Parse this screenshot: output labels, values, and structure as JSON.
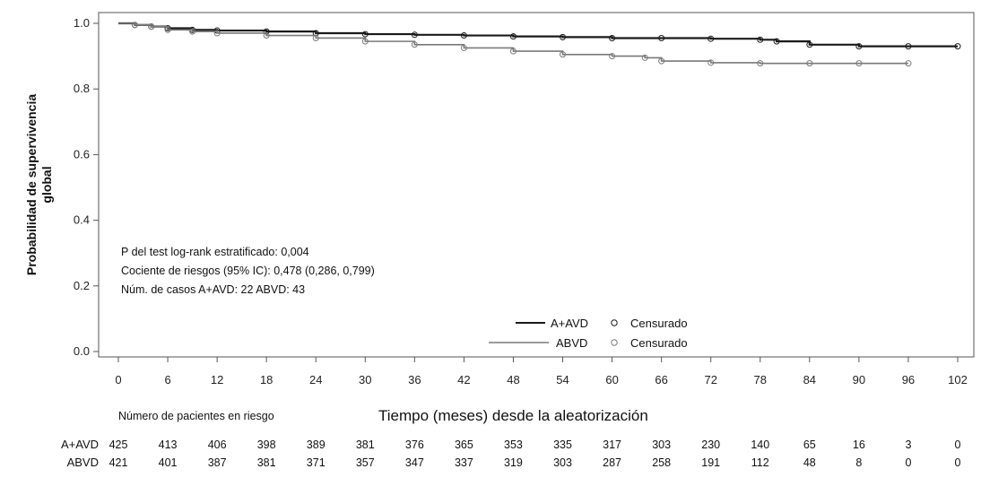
{
  "chart_data": {
    "type": "line",
    "title": "",
    "xlabel": "Tiempo (meses) desde la aleatorización",
    "ylabel_lines": [
      "Probabilidad de supervivencia",
      "global"
    ],
    "xlim": [
      0,
      102
    ],
    "ylim": [
      0.0,
      1.0
    ],
    "x_ticks": [
      0,
      6,
      12,
      18,
      24,
      30,
      36,
      42,
      48,
      54,
      60,
      66,
      72,
      78,
      84,
      90,
      96,
      102
    ],
    "y_ticks": [
      0.0,
      0.2,
      0.4,
      0.6,
      0.8,
      1.0
    ],
    "y_tick_labels": [
      "0.0",
      "0.2",
      "0.4",
      "0.6",
      "0.8",
      "1.0"
    ],
    "grid": false,
    "legend_position": "bottom-right",
    "series": [
      {
        "name": "A+AVD",
        "censor_label": "Censurado",
        "color": "#1a1a1a",
        "x": [
          0,
          2,
          4,
          6,
          9,
          12,
          18,
          24,
          30,
          36,
          42,
          48,
          54,
          60,
          66,
          72,
          78,
          80,
          84,
          90,
          96,
          102
        ],
        "y": [
          1.0,
          0.995,
          0.99,
          0.985,
          0.98,
          0.978,
          0.975,
          0.97,
          0.967,
          0.965,
          0.963,
          0.96,
          0.958,
          0.955,
          0.955,
          0.953,
          0.95,
          0.945,
          0.935,
          0.93,
          0.93,
          0.93
        ]
      },
      {
        "name": "ABVD",
        "censor_label": "Censurado",
        "color": "#7a7a7a",
        "x": [
          0,
          2,
          4,
          6,
          9,
          12,
          18,
          24,
          30,
          36,
          42,
          48,
          54,
          60,
          64,
          66,
          72,
          78,
          84,
          90,
          96
        ],
        "y": [
          1.0,
          0.995,
          0.99,
          0.98,
          0.975,
          0.97,
          0.963,
          0.955,
          0.945,
          0.935,
          0.925,
          0.915,
          0.905,
          0.9,
          0.895,
          0.885,
          0.88,
          0.878,
          0.878,
          0.878,
          0.878
        ]
      }
    ],
    "annotations": [
      "P del test log-rank estratificado: 0,004",
      "Cociente de riesgos (95% IC): 0,478 (0,286, 0,799)",
      "Núm. de casos A+AVD: 22 ABVD: 43"
    ],
    "risk_table": {
      "title": "Número de pacientes en riesgo",
      "rows": [
        {
          "label": "A+AVD",
          "values": [
            425,
            413,
            406,
            398,
            389,
            381,
            376,
            365,
            353,
            335,
            317,
            303,
            230,
            140,
            65,
            16,
            3,
            0
          ]
        },
        {
          "label": "ABVD",
          "values": [
            421,
            401,
            387,
            381,
            371,
            357,
            347,
            337,
            319,
            303,
            287,
            258,
            191,
            112,
            48,
            8,
            0,
            0
          ]
        }
      ]
    }
  }
}
